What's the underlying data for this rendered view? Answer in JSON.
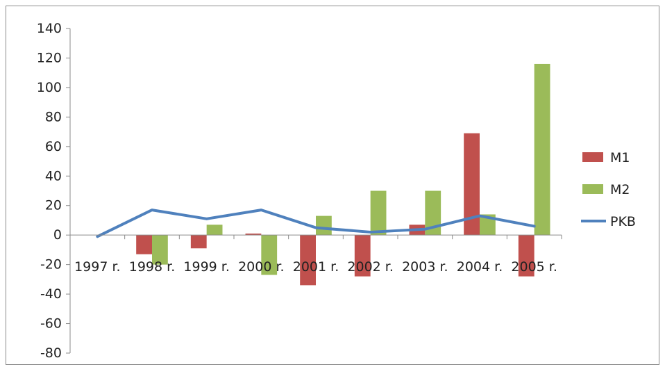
{
  "chart_data": {
    "type": "bar",
    "categories": [
      "1997 r.",
      "1998 r.",
      "1999 r.",
      "2000 r.",
      "2001 r.",
      "2002 r.",
      "2003 r.",
      "2004 r.",
      "2005 r."
    ],
    "series": [
      {
        "name": "M1",
        "kind": "bar",
        "color": "#c0504d",
        "values": [
          0,
          -13,
          -9,
          1,
          -34,
          -28,
          7,
          69,
          -28
        ]
      },
      {
        "name": "M2",
        "kind": "bar",
        "color": "#9bbb59",
        "values": [
          0,
          -20,
          7,
          -27,
          13,
          30,
          30,
          14,
          116
        ]
      },
      {
        "name": "PKB",
        "kind": "line",
        "color": "#4f81bd",
        "values": [
          -1,
          17,
          11,
          17,
          5,
          2,
          4,
          13,
          6
        ]
      }
    ],
    "y_ticks": [
      "140",
      "120",
      "100",
      "80",
      "60",
      "40",
      "20",
      "0",
      "-20",
      "-40",
      "-60",
      "-80"
    ],
    "ylim": [
      -80,
      140
    ],
    "legend_position": "right",
    "grid": false
  }
}
